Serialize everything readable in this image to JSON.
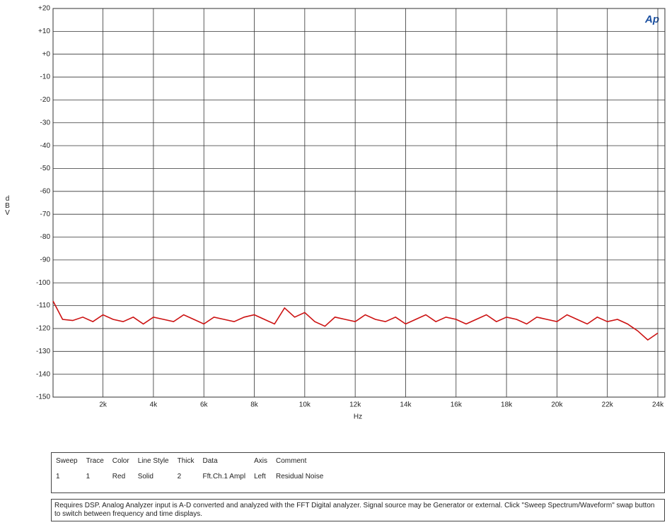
{
  "chart_data": {
    "type": "line",
    "logo": "Ap",
    "ylabel": "dBV",
    "xlabel": "Hz",
    "x": [
      20,
      400,
      800,
      1200,
      1600,
      2000,
      2400,
      2800,
      3200,
      3600,
      4000,
      4400,
      4800,
      5200,
      5600,
      6000,
      6400,
      6800,
      7200,
      7600,
      8000,
      8400,
      8800,
      9200,
      9600,
      10000,
      10400,
      10800,
      11200,
      11600,
      12000,
      12400,
      12800,
      13200,
      13600,
      14000,
      14400,
      14800,
      15200,
      15600,
      16000,
      16400,
      16800,
      17200,
      17600,
      18000,
      18400,
      18800,
      19200,
      19600,
      20000,
      20400,
      20800,
      21200,
      21600,
      22000,
      22400,
      22800,
      23200,
      23600,
      24000
    ],
    "series": [
      {
        "name": "Residual Noise",
        "color": "#cc1111",
        "values": [
          -108,
          -116,
          -116.5,
          -115,
          -117,
          -114,
          -116,
          -117,
          -115,
          -118,
          -115,
          -116,
          -117,
          -114,
          -116,
          -118,
          -115,
          -116,
          -117,
          -115,
          -114,
          -116,
          -118,
          -111,
          -115,
          -113,
          -117,
          -119,
          -115,
          -116,
          -117,
          -114,
          -116,
          -117,
          -115,
          -118,
          -116,
          -114,
          -117,
          -115,
          -116,
          -118,
          -116,
          -114,
          -117,
          -115,
          -116,
          -118,
          -115,
          -116,
          -117,
          -114,
          -116,
          -118,
          -115,
          -117,
          -116,
          -118,
          -121,
          -125,
          -122
        ]
      }
    ],
    "xlim": [
      20,
      24280
    ],
    "ylim": [
      -150,
      20
    ],
    "xticks": [
      {
        "value": 2000,
        "label": "2k"
      },
      {
        "value": 4000,
        "label": "4k"
      },
      {
        "value": 6000,
        "label": "6k"
      },
      {
        "value": 8000,
        "label": "8k"
      },
      {
        "value": 10000,
        "label": "10k"
      },
      {
        "value": 12000,
        "label": "12k"
      },
      {
        "value": 14000,
        "label": "14k"
      },
      {
        "value": 16000,
        "label": "16k"
      },
      {
        "value": 18000,
        "label": "18k"
      },
      {
        "value": 20000,
        "label": "20k"
      },
      {
        "value": 22000,
        "label": "22k"
      },
      {
        "value": 24000,
        "label": "24k"
      }
    ],
    "yticks": [
      {
        "value": 20,
        "label": "+20"
      },
      {
        "value": 10,
        "label": "+10"
      },
      {
        "value": 0,
        "label": "+0"
      },
      -10,
      -20,
      -30,
      -40,
      -50,
      -60,
      -70,
      -80,
      -90,
      -100,
      -110,
      -120,
      -130,
      -140,
      -150
    ],
    "grid": true
  },
  "legend_table": {
    "headers": [
      "Sweep",
      "Trace",
      "Color",
      "Line Style",
      "Thick",
      "Data",
      "Axis",
      "Comment"
    ],
    "rows": [
      [
        "1",
        "1",
        "Red",
        "Solid",
        "2",
        "Fft.Ch.1 Ampl",
        "Left",
        "Residual Noise"
      ]
    ]
  },
  "note": "Requires DSP.  Analog Analyzer input is A-D converted and analyzed with the FFT Digital analyzer.  Signal source may be Generator or external.  Click \"Sweep Spectrum/Waveform\" swap button to switch between frequency and time displays."
}
